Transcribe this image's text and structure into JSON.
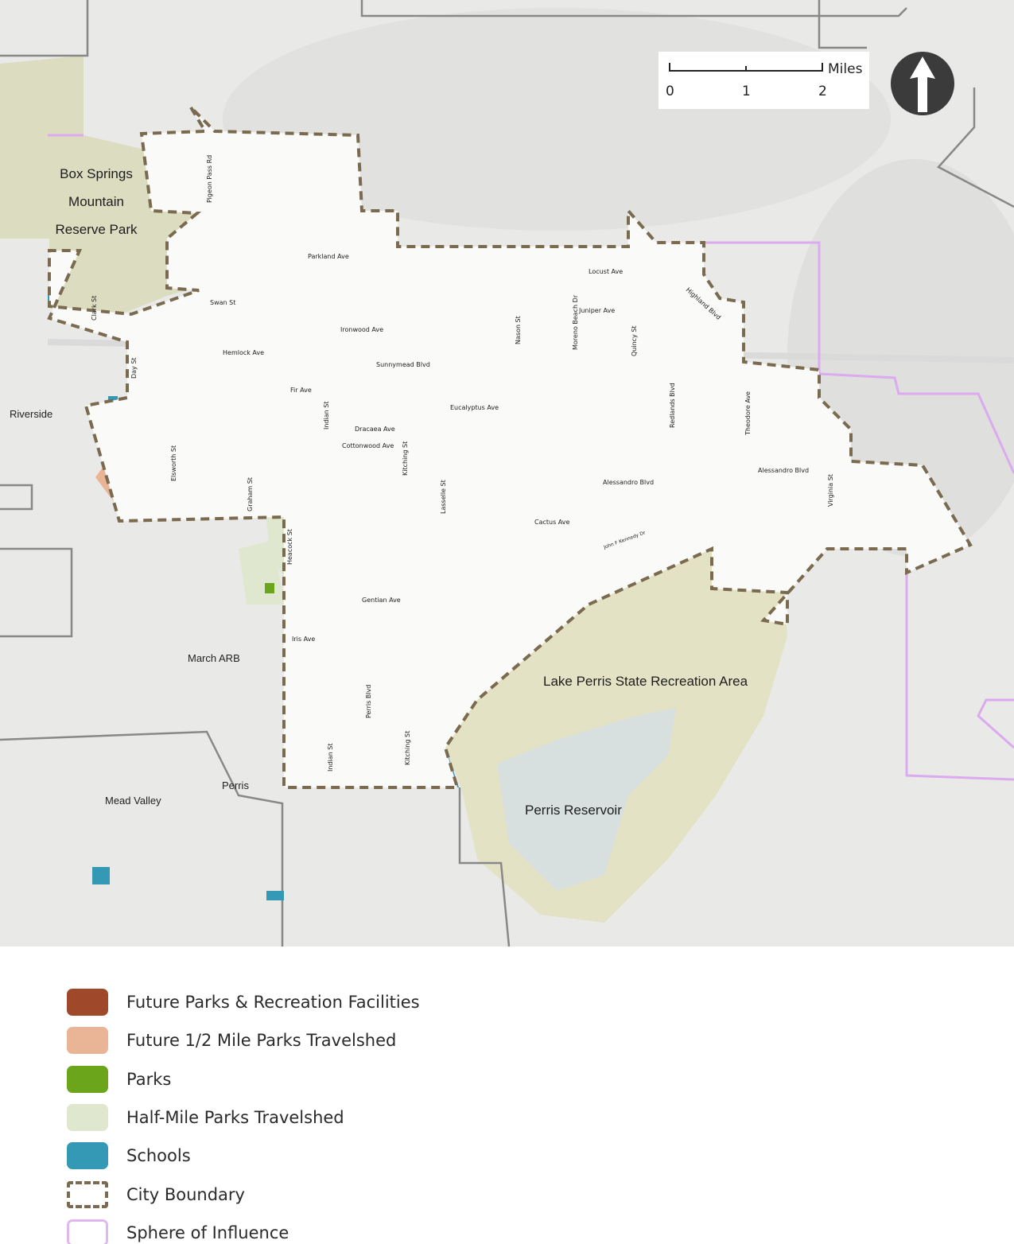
{
  "map": {
    "place_labels": {
      "box_springs_1": "Box Springs",
      "box_springs_2": "Mountain",
      "box_springs_3": "Reserve Park",
      "riverside": "Riverside",
      "march_arb": "March ARB",
      "perris": "Perris",
      "mead_valley": "Mead Valley",
      "lake_perris": "Lake Perris State Recreation Area",
      "perris_reservoir": "Perris Reservoir"
    },
    "street_labels": {
      "pigeon_pass": "Pigeon Pass Rd",
      "parkland": "Parkland Ave",
      "clark": "Clark St",
      "swan": "Swan St",
      "ironwood": "Ironwood Ave",
      "hemlock": "Hemlock Ave",
      "sunnymead": "Sunnymead Blvd",
      "day": "Day St",
      "fir": "Fir Ave",
      "indian_n": "Indian St",
      "dracaea": "Dracaea Ave",
      "cottonwood": "Cottonwood Ave",
      "kitching_n": "Kitching St",
      "eucalyptus": "Eucalyptus Ave",
      "elsworth": "Elsworth St",
      "graham": "Graham St",
      "lasselle": "Lasselle St",
      "heacock": "Heacock St",
      "gentian": "Gentian Ave",
      "iris": "Iris Ave",
      "perris_blvd": "Perris Blvd",
      "indian_s": "Indian St",
      "kitching_s": "Kitching St",
      "locust": "Locust Ave",
      "juniper": "Juniper Ave",
      "nason": "Nason St",
      "moreno_beach": "Moreno Beach Dr",
      "quincy": "Quincy St",
      "highland": "Highland Blvd",
      "redlands": "Redlands Blvd",
      "theodore": "Theodore Ave",
      "alessandro_w": "Alessandro Blvd",
      "alessandro_e": "Alessandro Blvd",
      "virginia": "Virginia St",
      "cactus": "Cactus Ave",
      "jfk": "John F Kennedy Dr"
    }
  },
  "scale_bar": {
    "unit": "Miles",
    "ticks": [
      "0",
      "1",
      "2"
    ]
  },
  "north_arrow": {
    "icon": "north-arrow-icon"
  },
  "legend": [
    {
      "label": "Future Parks & Recreation Facilities",
      "color": "#a0482a"
    },
    {
      "label": "Future 1/2 Mile Parks Travelshed",
      "color": "#eab596"
    },
    {
      "label": "Parks",
      "color": "#6aa51b"
    },
    {
      "label": "Half-Mile Parks Travelshed",
      "color": "#dfe8cf"
    },
    {
      "label": "Schools",
      "color": "#3399b5"
    },
    {
      "label": "City Boundary",
      "color": "#7a6a4f"
    },
    {
      "label": "Sphere of Influence",
      "color": "#e1b8ee"
    }
  ]
}
